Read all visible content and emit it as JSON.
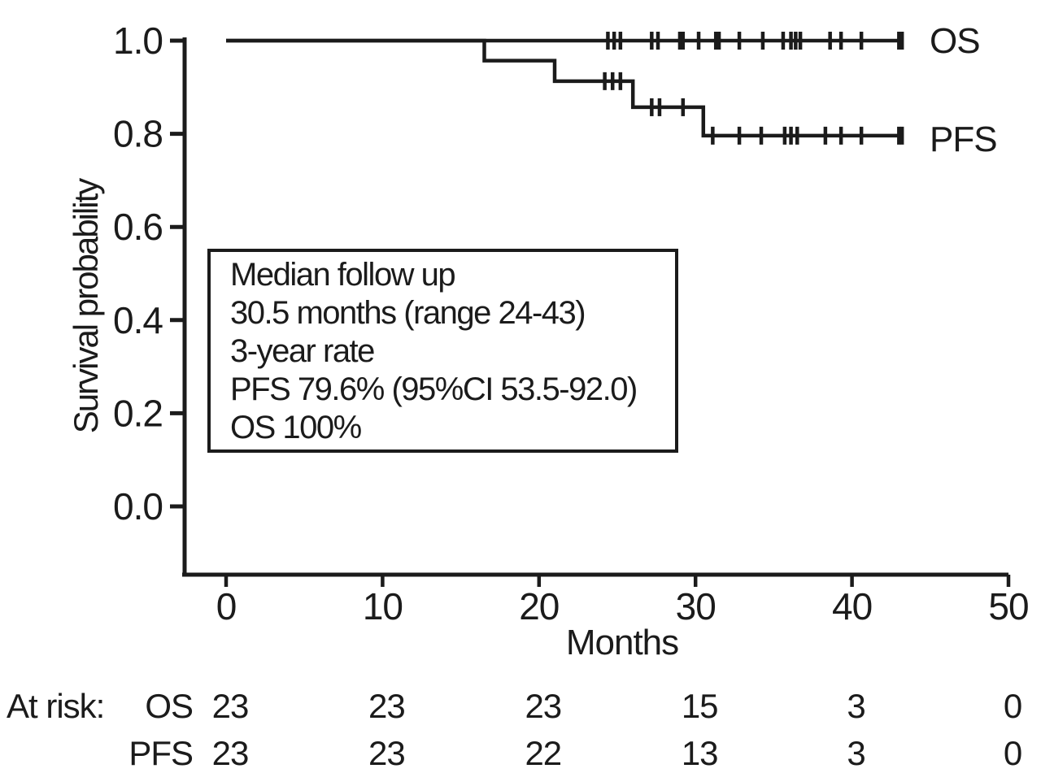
{
  "chart_data": {
    "type": "line",
    "subtype": "kaplan-meier-step",
    "title": "",
    "xlabel": "Months",
    "ylabel": "Survival probability",
    "xlim": [
      0,
      50
    ],
    "ylim": [
      0.0,
      1.0
    ],
    "x_ticks": [
      0,
      10,
      20,
      30,
      40,
      50
    ],
    "y_ticks": [
      0.0,
      0.2,
      0.4,
      0.6,
      0.8,
      1.0
    ],
    "grid": false,
    "line_color": "#1b1b1b",
    "background_color": "#ffffff",
    "legend_position": "right-of-curve-ends",
    "series": [
      {
        "name": "OS",
        "color": "#1b1b1b",
        "steps": [
          [
            0,
            1.0
          ],
          [
            43.2,
            1.0
          ]
        ],
        "censor_marks_x": [
          24.4,
          24.8,
          25.2,
          27.2,
          27.6,
          29.0,
          29.2,
          30.2,
          31.3,
          31.5,
          32.8,
          34.3,
          35.6,
          36.1,
          36.4,
          36.7,
          38.6,
          39.3,
          40.6,
          43.0,
          43.2
        ]
      },
      {
        "name": "PFS",
        "color": "#1b1b1b",
        "steps": [
          [
            0,
            1.0
          ],
          [
            16.5,
            1.0
          ],
          [
            16.5,
            0.957
          ],
          [
            21,
            0.957
          ],
          [
            21,
            0.913
          ],
          [
            26,
            0.913
          ],
          [
            26,
            0.857
          ],
          [
            30.5,
            0.857
          ],
          [
            30.5,
            0.796
          ],
          [
            43.2,
            0.796
          ]
        ],
        "censor_marks_x": [
          24.2,
          24.7,
          25.2,
          27.2,
          27.7,
          29.2,
          31.1,
          32.8,
          34.2,
          35.7,
          36.1,
          36.5,
          38.3,
          39.3,
          40.6,
          43.0,
          43.2
        ]
      }
    ],
    "annotation_lines": [
      "Median follow up",
      "30.5 months (range 24-43)",
      "3-year rate",
      "PFS 79.6% (95%CI 53.5-92.0)",
      "OS 100%"
    ],
    "at_risk": {
      "label": "At risk:",
      "time_points": [
        0,
        10,
        20,
        30,
        40,
        50
      ],
      "rows": [
        {
          "name": "OS",
          "counts": [
            23,
            23,
            23,
            15,
            3,
            0
          ]
        },
        {
          "name": "PFS",
          "counts": [
            23,
            23,
            22,
            13,
            3,
            0
          ]
        }
      ]
    }
  }
}
